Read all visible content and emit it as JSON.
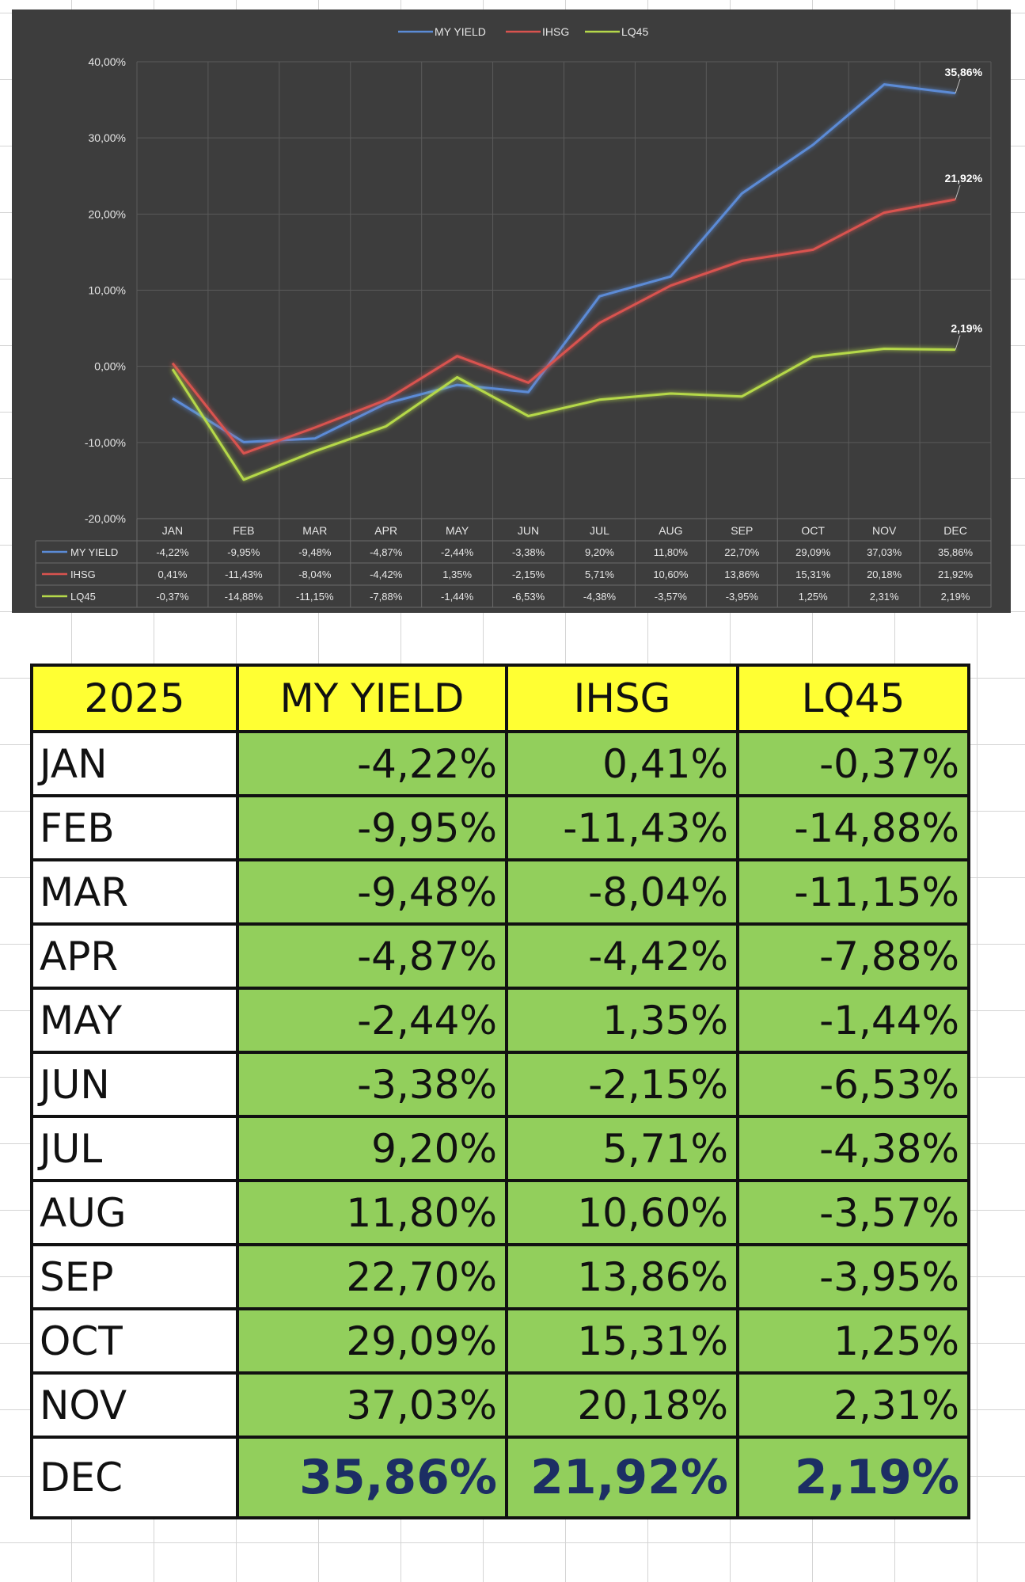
{
  "chart_data": {
    "type": "line",
    "title": "",
    "xlabel": "",
    "ylabel": "",
    "categories": [
      "JAN",
      "FEB",
      "MAR",
      "APR",
      "MAY",
      "JUN",
      "JUL",
      "AUG",
      "SEP",
      "OCT",
      "NOV",
      "DEC"
    ],
    "ylim": [
      -20,
      40
    ],
    "yticks": [
      40,
      30,
      20,
      10,
      0,
      -10,
      -20
    ],
    "ytick_labels": [
      "40,00%",
      "30,00%",
      "20,00%",
      "10,00%",
      "0,00%",
      "-10,00%",
      "-20,00%"
    ],
    "grid": true,
    "legend_position": "top-center",
    "series": [
      {
        "name": "MY YIELD",
        "color": "#5b8bd6",
        "values": [
          -4.22,
          -9.95,
          -9.48,
          -4.87,
          -2.44,
          -3.38,
          9.2,
          11.8,
          22.7,
          29.09,
          37.03,
          35.86
        ],
        "labels": [
          "-4,22%",
          "-9,95%",
          "-9,48%",
          "-4,87%",
          "-2,44%",
          "-3,38%",
          "9,20%",
          "11,80%",
          "22,70%",
          "29,09%",
          "37,03%",
          "35,86%"
        ]
      },
      {
        "name": "IHSG",
        "color": "#d9534f",
        "values": [
          0.41,
          -11.43,
          -8.04,
          -4.42,
          1.35,
          -2.15,
          5.71,
          10.6,
          13.86,
          15.31,
          20.18,
          21.92
        ],
        "labels": [
          "0,41%",
          "-11,43%",
          "-8,04%",
          "-4,42%",
          "1,35%",
          "-2,15%",
          "5,71%",
          "10,60%",
          "13,86%",
          "15,31%",
          "20,18%",
          "21,92%"
        ]
      },
      {
        "name": "LQ45",
        "color": "#b5d84a",
        "values": [
          -0.37,
          -14.88,
          -11.15,
          -7.88,
          -1.44,
          -6.53,
          -4.38,
          -3.57,
          -3.95,
          1.25,
          2.31,
          2.19
        ],
        "labels": [
          "-0,37%",
          "-14,88%",
          "-11,15%",
          "-7,88%",
          "-1,44%",
          "-6,53%",
          "-4,38%",
          "-3,57%",
          "-3,95%",
          "1,25%",
          "2,31%",
          "2,19%"
        ]
      }
    ],
    "end_labels": [
      "35,86%",
      "21,92%",
      "2,19%"
    ]
  },
  "table": {
    "year": "2025",
    "headers": [
      "MY YIELD",
      "IHSG",
      "LQ45"
    ],
    "rows": [
      {
        "month": "JAN",
        "my_yield": "-4,22%",
        "ihsg": "0,41%",
        "lq45": "-0,37%"
      },
      {
        "month": "FEB",
        "my_yield": "-9,95%",
        "ihsg": "-11,43%",
        "lq45": "-14,88%"
      },
      {
        "month": "MAR",
        "my_yield": "-9,48%",
        "ihsg": "-8,04%",
        "lq45": "-11,15%"
      },
      {
        "month": "APR",
        "my_yield": "-4,87%",
        "ihsg": "-4,42%",
        "lq45": "-7,88%"
      },
      {
        "month": "MAY",
        "my_yield": "-2,44%",
        "ihsg": "1,35%",
        "lq45": "-1,44%"
      },
      {
        "month": "JUN",
        "my_yield": "-3,38%",
        "ihsg": "-2,15%",
        "lq45": "-6,53%"
      },
      {
        "month": "JUL",
        "my_yield": "9,20%",
        "ihsg": "5,71%",
        "lq45": "-4,38%"
      },
      {
        "month": "AUG",
        "my_yield": "11,80%",
        "ihsg": "10,60%",
        "lq45": "-3,57%"
      },
      {
        "month": "SEP",
        "my_yield": "22,70%",
        "ihsg": "13,86%",
        "lq45": "-3,95%"
      },
      {
        "month": "OCT",
        "my_yield": "29,09%",
        "ihsg": "15,31%",
        "lq45": "1,25%"
      },
      {
        "month": "NOV",
        "my_yield": "37,03%",
        "ihsg": "20,18%",
        "lq45": "2,31%"
      },
      {
        "month": "DEC",
        "my_yield": "35,86%",
        "ihsg": "21,92%",
        "lq45": "2,19%"
      }
    ]
  }
}
